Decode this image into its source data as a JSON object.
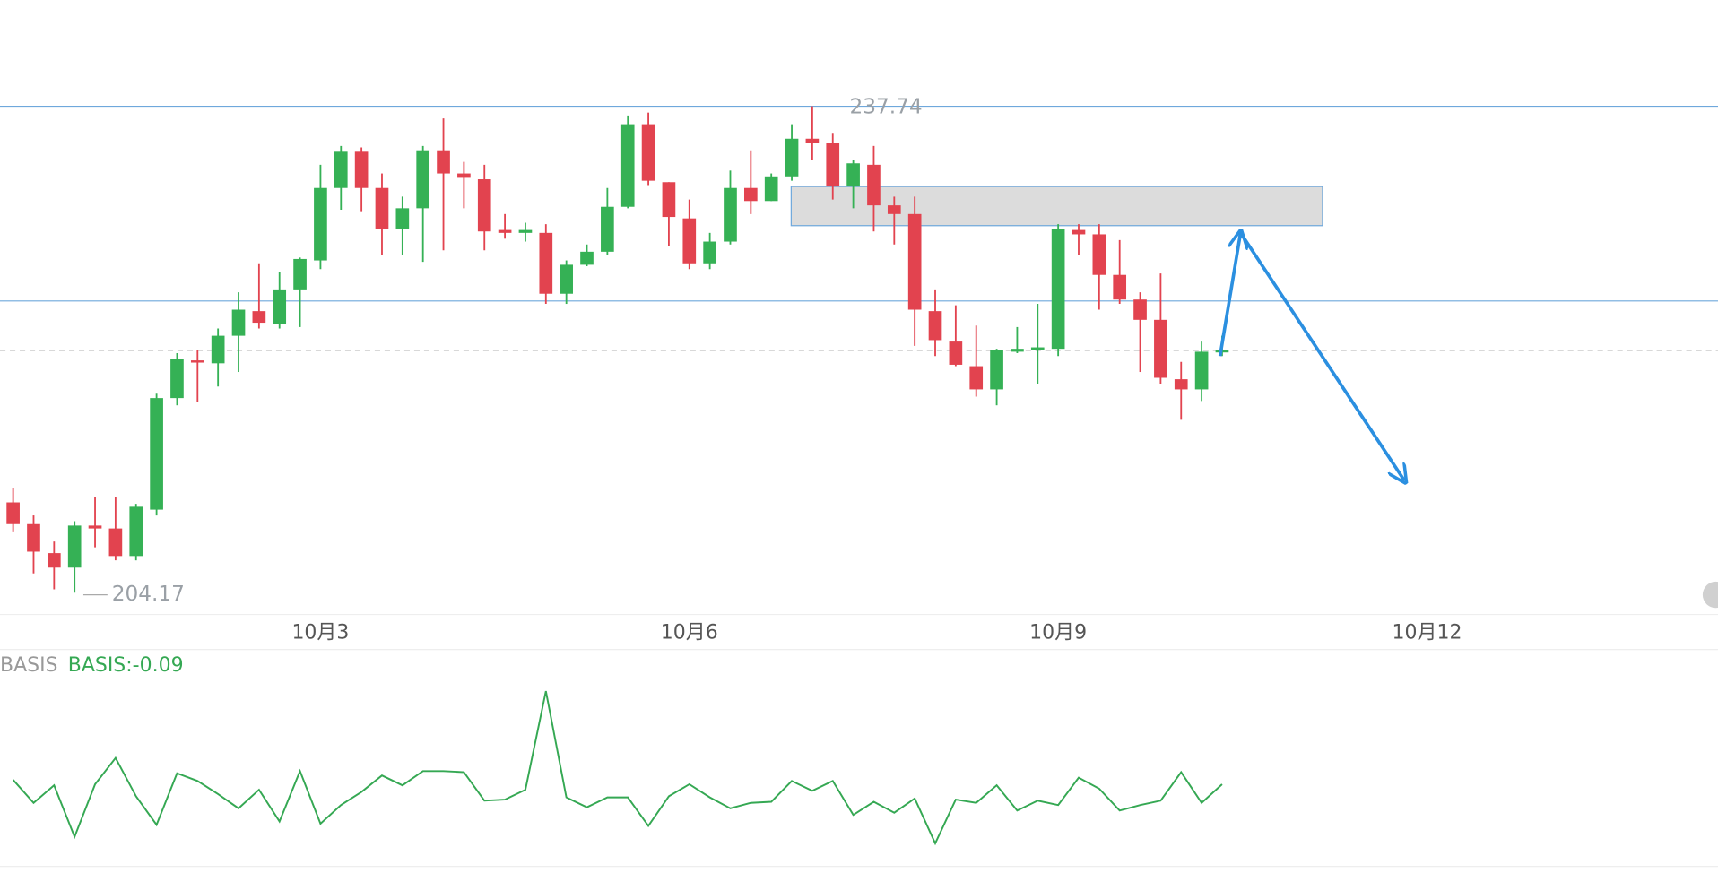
{
  "chart_data": [
    {
      "type": "candlestick",
      "x": [
        0,
        1,
        2,
        3,
        4,
        5,
        6,
        7,
        8,
        9,
        10,
        11,
        12,
        13,
        14,
        15,
        16,
        17,
        18,
        19,
        20,
        21,
        22,
        23,
        24,
        25,
        26,
        27,
        28,
        29,
        30,
        31,
        32,
        33,
        34,
        35,
        36,
        37,
        38,
        39,
        40,
        41,
        42,
        43,
        44,
        45,
        46,
        47,
        48,
        49,
        50,
        51,
        52,
        53,
        54,
        55,
        56,
        57,
        58,
        59
      ],
      "open": [
        210.4,
        208.9,
        206.9,
        205.9,
        208.8,
        208.6,
        206.7,
        209.9,
        217.6,
        220.2,
        220.0,
        221.9,
        223.6,
        222.7,
        225.1,
        227.1,
        232.1,
        234.6,
        232.1,
        229.3,
        230.7,
        234.7,
        233.1,
        232.7,
        229.2,
        229.0,
        229.0,
        224.8,
        226.8,
        227.7,
        230.8,
        236.5,
        232.5,
        230.0,
        226.9,
        228.4,
        232.1,
        231.2,
        232.9,
        235.5,
        235.2,
        232.2,
        233.7,
        230.9,
        230.3,
        223.6,
        221.5,
        219.8,
        218.2,
        220.8,
        221.0,
        221.0,
        229.2,
        228.9,
        226.1,
        224.4,
        223.0,
        218.9,
        218.2,
        220.8
      ],
      "high": [
        211.4,
        209.5,
        207.7,
        209.1,
        210.8,
        210.8,
        210.3,
        217.9,
        220.7,
        220.9,
        222.4,
        224.9,
        226.9,
        226.3,
        227.3,
        233.7,
        235.0,
        234.9,
        233.1,
        231.5,
        235.0,
        236.9,
        233.9,
        233.7,
        230.3,
        229.7,
        229.6,
        227.1,
        228.2,
        232.1,
        237.1,
        237.3,
        232.5,
        231.3,
        229.0,
        233.3,
        234.7,
        233.1,
        236.5,
        237.74,
        235.9,
        234.0,
        235.0,
        231.5,
        231.5,
        225.1,
        224.0,
        222.6,
        221.0,
        222.5,
        224.1,
        229.6,
        229.6,
        229.6,
        228.5,
        224.9,
        226.2,
        220.1,
        221.5,
        221.9
      ],
      "low": [
        208.4,
        205.5,
        204.4,
        204.17,
        207.3,
        206.4,
        206.4,
        209.5,
        217.1,
        217.3,
        218.4,
        219.4,
        222.4,
        222.4,
        222.5,
        226.5,
        230.6,
        230.5,
        227.5,
        227.5,
        227.0,
        227.8,
        230.7,
        227.8,
        228.6,
        228.4,
        224.1,
        224.1,
        226.7,
        227.5,
        230.7,
        232.3,
        228.1,
        226.5,
        226.5,
        228.2,
        230.3,
        231.2,
        232.6,
        234.0,
        231.3,
        230.7,
        229.1,
        228.2,
        221.2,
        220.5,
        219.8,
        217.7,
        217.1,
        220.7,
        218.6,
        220.5,
        227.5,
        223.7,
        224.1,
        219.4,
        218.6,
        216.1,
        217.4,
        220.5
      ],
      "close": [
        208.9,
        207.0,
        205.9,
        208.8,
        208.6,
        206.7,
        210.1,
        217.6,
        220.3,
        220.1,
        221.9,
        223.7,
        222.8,
        225.1,
        227.2,
        232.1,
        234.6,
        232.1,
        229.3,
        230.7,
        234.7,
        233.1,
        232.8,
        229.1,
        229.0,
        229.2,
        224.8,
        226.8,
        227.7,
        230.8,
        236.5,
        232.6,
        230.1,
        226.9,
        228.4,
        232.1,
        231.2,
        232.9,
        235.5,
        235.2,
        232.2,
        233.8,
        230.9,
        230.3,
        223.7,
        221.6,
        219.9,
        218.2,
        220.9,
        221.0,
        221.1,
        229.3,
        228.9,
        226.1,
        224.4,
        223.0,
        219.0,
        218.2,
        220.8,
        220.9
      ],
      "up_color": "#35b155",
      "down_color": "#e2434f",
      "xlim": [
        -0.64,
        83.2
      ],
      "ylim": [
        202.74,
        245.07
      ],
      "xticks": [
        {
          "value": 15,
          "label": "10月3"
        },
        {
          "value": 33,
          "label": "10月6"
        },
        {
          "value": 51,
          "label": "10月9"
        },
        {
          "value": 69,
          "label": "10月12"
        }
      ],
      "levels": [
        237.74,
        224.3
      ],
      "level_color": "#6fa8dc",
      "last_price": 220.9,
      "zone": {
        "x": [
          37.97,
          63.9
        ],
        "y": [
          229.5,
          232.2
        ]
      },
      "arrow": {
        "x": [
          58.9,
          59.9,
          67.9
        ],
        "y": [
          220.5,
          229.0,
          211.9
        ],
        "color": "#2b8fe0"
      }
    },
    {
      "type": "line",
      "title": "BASIS",
      "value_label": "BASIS:-0.09",
      "color": "#35a853",
      "x": [
        0,
        1,
        2,
        3,
        4,
        5,
        6,
        7,
        8,
        9,
        10,
        11,
        12,
        13,
        14,
        15,
        16,
        17,
        18,
        19,
        20,
        21,
        22,
        23,
        24,
        25,
        26,
        27,
        28,
        29,
        30,
        31,
        32,
        33,
        34,
        35,
        36,
        37,
        38,
        39,
        40,
        41,
        42,
        43,
        44,
        45,
        46,
        47,
        48,
        49,
        50,
        51,
        52,
        53,
        54,
        55,
        56,
        57,
        58,
        59
      ],
      "values": [
        -0.05,
        -0.26,
        -0.1,
        -0.57,
        -0.09,
        0.15,
        -0.2,
        -0.46,
        0.01,
        -0.06,
        -0.18,
        -0.31,
        -0.14,
        -0.43,
        0.03,
        -0.45,
        -0.28,
        -0.16,
        -0.01,
        -0.1,
        0.03,
        0.03,
        0.02,
        -0.24,
        -0.23,
        -0.14,
        0.76,
        -0.21,
        -0.3,
        -0.21,
        -0.21,
        -0.47,
        -0.2,
        -0.09,
        -0.21,
        -0.31,
        -0.26,
        -0.25,
        -0.06,
        -0.15,
        -0.06,
        -0.37,
        -0.25,
        -0.35,
        -0.22,
        -0.63,
        -0.23,
        -0.26,
        -0.1,
        -0.33,
        -0.24,
        -0.28,
        -0.03,
        -0.13,
        -0.33,
        -0.28,
        -0.24,
        0.02,
        -0.26,
        -0.09
      ],
      "xlim": [
        -0.64,
        83.2
      ],
      "ylim": [
        -0.83,
        1.07
      ]
    }
  ]
}
